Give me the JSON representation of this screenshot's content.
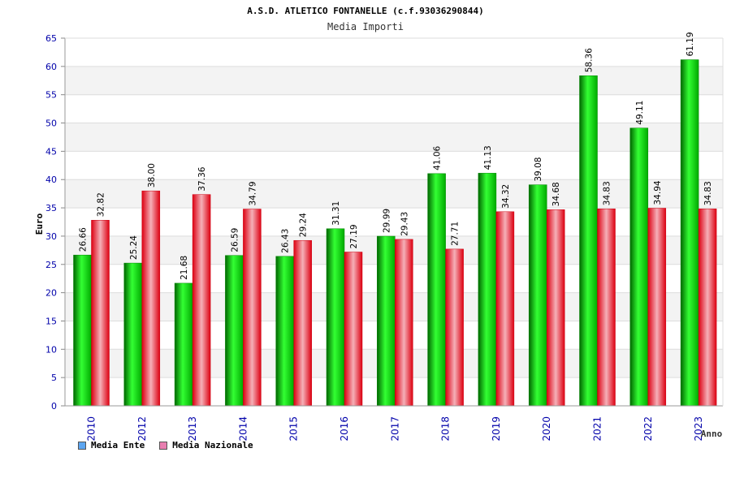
{
  "chart_data": {
    "type": "bar",
    "title": "A.S.D. ATLETICO FONTANELLE (c.f.93036290844)",
    "subtitle": "Media Importi",
    "xlabel": "Anno",
    "ylabel": "Euro",
    "ylim": [
      0,
      65
    ],
    "yticks": [
      0,
      5,
      10,
      15,
      20,
      25,
      30,
      35,
      40,
      45,
      50,
      55,
      60,
      65
    ],
    "grid": true,
    "legend_position": "bottom-left",
    "categories": [
      "2010",
      "2012",
      "2013",
      "2014",
      "2015",
      "2016",
      "2017",
      "2018",
      "2019",
      "2020",
      "2021",
      "2022",
      "2023"
    ],
    "series": [
      {
        "name": "Media Ente",
        "color": "#00cc00",
        "legend_color": "#5da5f0",
        "values": [
          26.66,
          25.24,
          21.68,
          26.59,
          26.43,
          31.31,
          29.99,
          41.06,
          41.13,
          39.08,
          58.36,
          49.11,
          61.19
        ],
        "labels": [
          "26.66",
          "25.24",
          "21.68",
          "26.59",
          "26.43",
          "31.31",
          "29.99",
          "41.06",
          "41.13",
          "39.08",
          "58.36",
          "49.11",
          "61.19"
        ]
      },
      {
        "name": "Media Nazionale",
        "color": "#ee2233",
        "legend_color": "#e87fb0",
        "values": [
          32.82,
          38.0,
          37.36,
          34.79,
          29.24,
          27.19,
          29.43,
          27.71,
          34.32,
          34.68,
          34.83,
          34.94,
          34.83
        ],
        "labels": [
          "32.82",
          "38.00",
          "37.36",
          "34.79",
          "29.24",
          "27.19",
          "29.43",
          "27.71",
          "34.32",
          "34.68",
          "34.83",
          "34.94",
          "34.83"
        ]
      }
    ]
  }
}
